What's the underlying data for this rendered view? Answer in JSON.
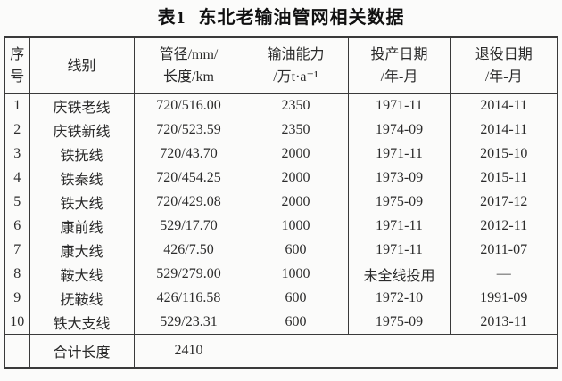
{
  "caption": "表1 东北老输油管网相关数据",
  "colors": {
    "page_background": "#fbfbfa",
    "border": "#3a3a3a",
    "text": "#2b2b2b"
  },
  "chart_data": {
    "type": "table",
    "caption": "表1 东北老输油管网相关数据",
    "columns": [
      {
        "key": "index",
        "label": "序号",
        "lines": [
          "序",
          "号"
        ]
      },
      {
        "key": "line-name",
        "label": "线别",
        "lines": [
          "线别"
        ]
      },
      {
        "key": "diameter-length",
        "label": "管径/mm/长度/km",
        "lines": [
          "管径/mm/",
          "长度/km"
        ]
      },
      {
        "key": "capacity",
        "label": "输油能力/万t·a⁻¹",
        "lines": [
          "输油能力",
          "/万t·a⁻¹"
        ]
      },
      {
        "key": "commission-date",
        "label": "投产日期/年-月",
        "lines": [
          "投产日期",
          "/年-月"
        ]
      },
      {
        "key": "retire-date",
        "label": "退役日期/年-月",
        "lines": [
          "退役日期",
          "/年-月"
        ]
      }
    ],
    "rows": [
      [
        "1",
        "庆铁老线",
        "720/516.00",
        "2350",
        "1971-11",
        "2014-11"
      ],
      [
        "2",
        "庆铁新线",
        "720/523.59",
        "2350",
        "1974-09",
        "2014-11"
      ],
      [
        "3",
        "铁抚线",
        "720/43.70",
        "2000",
        "1971-11",
        "2015-10"
      ],
      [
        "4",
        "铁秦线",
        "720/454.25",
        "2000",
        "1973-09",
        "2015-11"
      ],
      [
        "5",
        "铁大线",
        "720/429.08",
        "2000",
        "1975-09",
        "2017-12"
      ],
      [
        "6",
        "康前线",
        "529/17.70",
        "1000",
        "1971-11",
        "2012-11"
      ],
      [
        "7",
        "康大线",
        "426/7.50",
        "600",
        "1971-11",
        "2011-07"
      ],
      [
        "8",
        "鞍大线",
        "529/279.00",
        "1000",
        "未全线投用",
        "—"
      ],
      [
        "9",
        "抚鞍线",
        "426/116.58",
        "600",
        "1972-10",
        "1991-09"
      ],
      [
        "10",
        "铁大支线",
        "529/23.31",
        "600",
        "1975-09",
        "2013-11"
      ]
    ],
    "footer": {
      "cells": [
        {
          "key": "index",
          "text": "",
          "span": 1
        },
        {
          "key": "total-label",
          "text": "合计长度",
          "span": 1
        },
        {
          "key": "total-value",
          "text": "2410",
          "span": 1
        },
        {
          "key": "merged-empty",
          "text": "",
          "span": 3
        }
      ]
    }
  }
}
